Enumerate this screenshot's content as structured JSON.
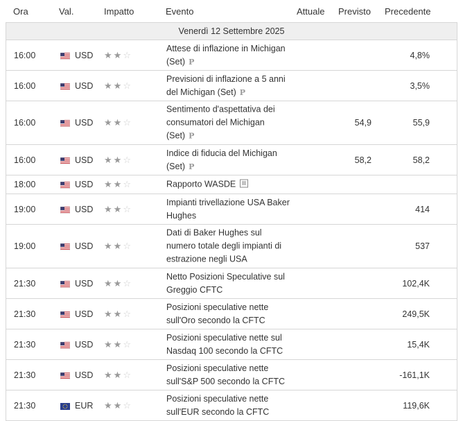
{
  "headers": {
    "time": "Ora",
    "currency": "Val.",
    "impact": "Impatto",
    "event": "Evento",
    "actual": "Attuale",
    "forecast": "Previsto",
    "previous": "Precedente"
  },
  "date": "Venerdì 12 Settembre 2025",
  "stars_on": "★★",
  "stars_off": "☆",
  "prelim_mark": "P",
  "rows": [
    {
      "time": "16:00",
      "flag": "us-flag-icon",
      "currency": "USD",
      "impact": 2,
      "event": "Attese di inflazione in Michigan (Set)",
      "mark": "prelim",
      "actual": "",
      "forecast": "",
      "previous": "4,8%"
    },
    {
      "time": "16:00",
      "flag": "us-flag-icon",
      "currency": "USD",
      "impact": 2,
      "event": "Previsioni di inflazione a 5 anni del Michigan (Set)",
      "mark": "prelim",
      "actual": "",
      "forecast": "",
      "previous": "3,5%"
    },
    {
      "time": "16:00",
      "flag": "us-flag-icon",
      "currency": "USD",
      "impact": 2,
      "event": "Sentimento d'aspettativa dei consumatori del Michigan (Set)",
      "mark": "prelim",
      "actual": "",
      "forecast": "54,9",
      "previous": "55,9"
    },
    {
      "time": "16:00",
      "flag": "us-flag-icon",
      "currency": "USD",
      "impact": 2,
      "event": "Indice di fiducia del Michigan (Set)",
      "mark": "prelim",
      "actual": "",
      "forecast": "58,2",
      "previous": "58,2"
    },
    {
      "time": "18:00",
      "flag": "us-flag-icon",
      "currency": "USD",
      "impact": 2,
      "event": "Rapporto WASDE",
      "mark": "report",
      "actual": "",
      "forecast": "",
      "previous": ""
    },
    {
      "time": "19:00",
      "flag": "us-flag-icon",
      "currency": "USD",
      "impact": 2,
      "event": "Impianti trivellazione USA Baker Hughes",
      "mark": "",
      "actual": "",
      "forecast": "",
      "previous": "414"
    },
    {
      "time": "19:00",
      "flag": "us-flag-icon",
      "currency": "USD",
      "impact": 2,
      "event": "Dati di Baker Hughes sul numero totale degli impianti di estrazione negli USA",
      "mark": "",
      "actual": "",
      "forecast": "",
      "previous": "537"
    },
    {
      "time": "21:30",
      "flag": "us-flag-icon",
      "currency": "USD",
      "impact": 2,
      "event": "Netto Posizioni Speculative sul Greggio CFTC",
      "mark": "",
      "actual": "",
      "forecast": "",
      "previous": "102,4K"
    },
    {
      "time": "21:30",
      "flag": "us-flag-icon",
      "currency": "USD",
      "impact": 2,
      "event": "Posizioni speculative nette sull'Oro secondo la CFTC",
      "mark": "",
      "actual": "",
      "forecast": "",
      "previous": "249,5K"
    },
    {
      "time": "21:30",
      "flag": "us-flag-icon",
      "currency": "USD",
      "impact": 2,
      "event": "Posizioni speculative nette sul Nasdaq 100 secondo la CFTC",
      "mark": "",
      "actual": "",
      "forecast": "",
      "previous": "15,4K"
    },
    {
      "time": "21:30",
      "flag": "us-flag-icon",
      "currency": "USD",
      "impact": 2,
      "event": "Posizioni speculative nette sull'S&P 500 secondo la CFTC",
      "mark": "",
      "actual": "",
      "forecast": "",
      "previous": "-161,1K"
    },
    {
      "time": "21:30",
      "flag": "eu-flag-icon",
      "currency": "EUR",
      "impact": 2,
      "event": "Posizioni speculative nette sull'EUR secondo la CFTC",
      "mark": "",
      "actual": "",
      "forecast": "",
      "previous": "119,6K"
    }
  ]
}
